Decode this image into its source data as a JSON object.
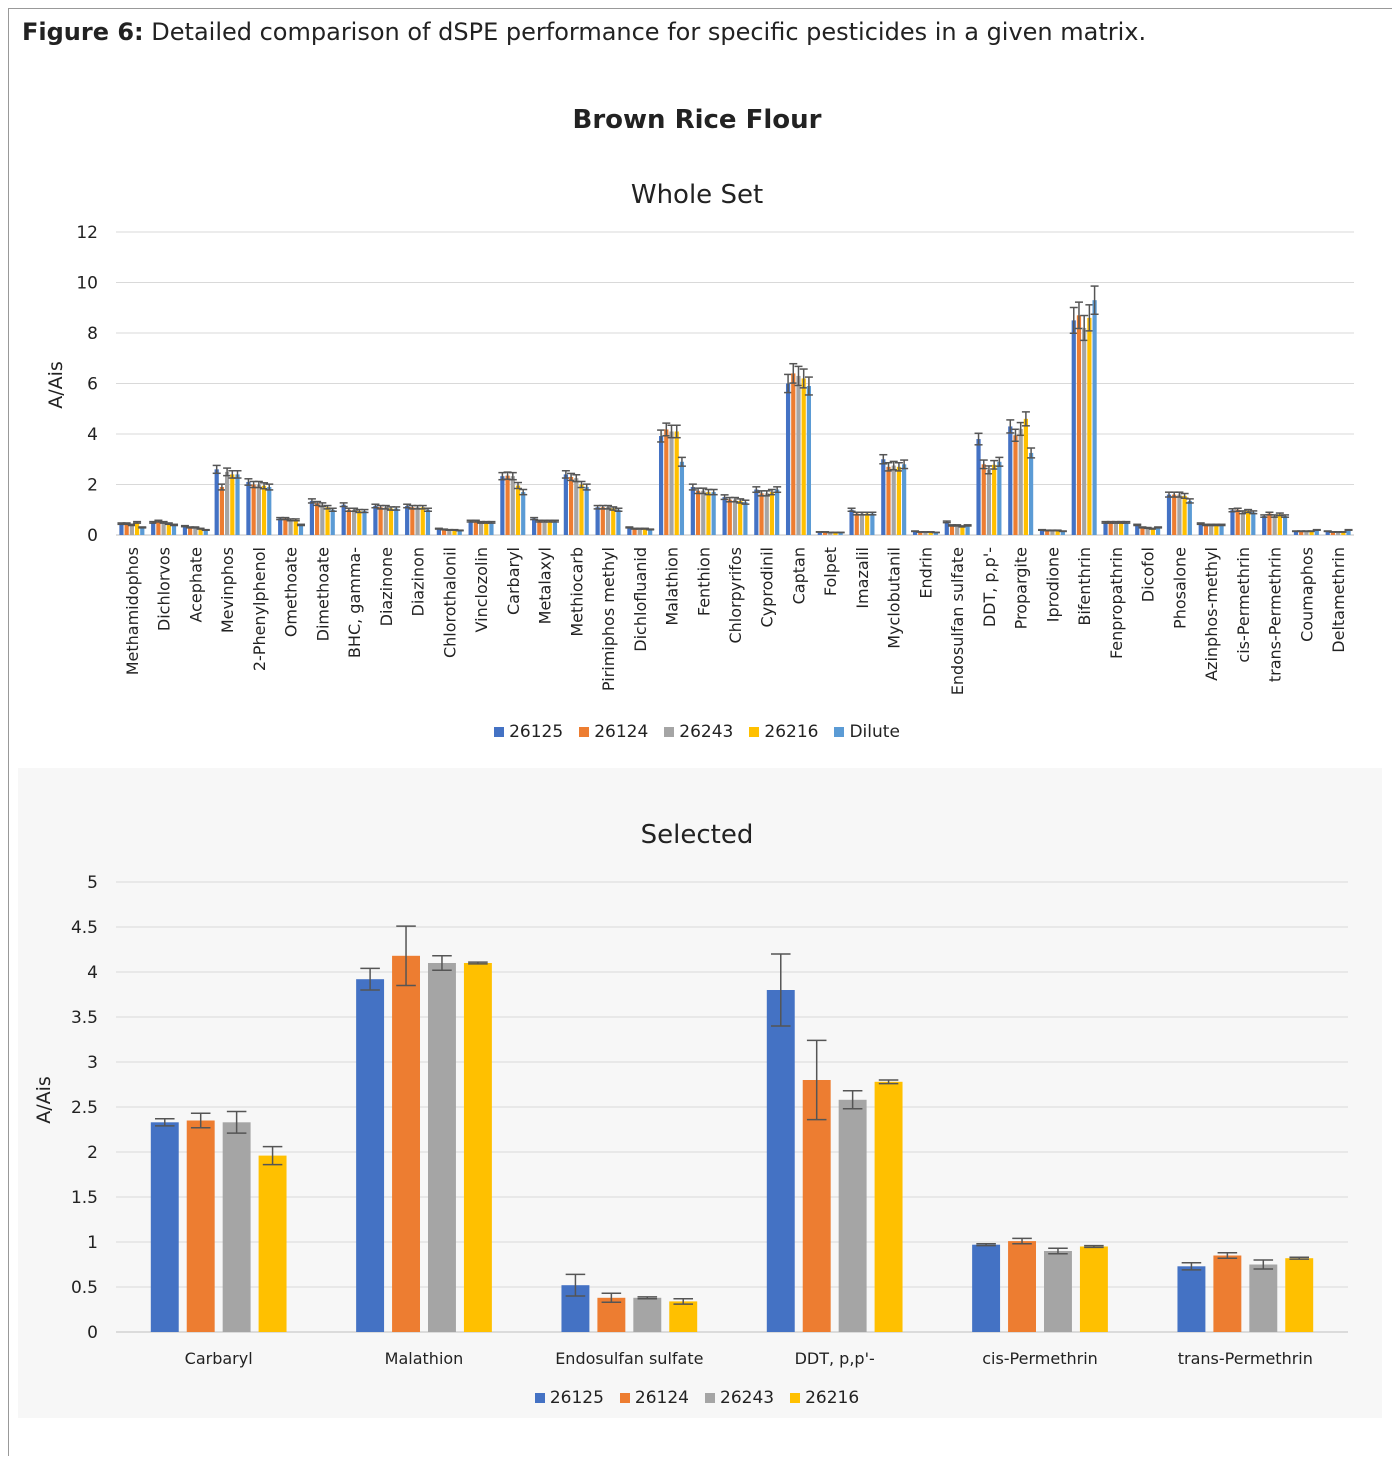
{
  "caption": {
    "label": "Figure 6:",
    "text": " Detailed comparison of dSPE performance for specific pesticides in a given matrix."
  },
  "main_title": "Brown Rice Flour",
  "chart_data": [
    {
      "type": "bar",
      "title": "Whole Set",
      "xlabel": "",
      "ylabel": "A/Ais",
      "ylim": [
        0,
        12
      ],
      "yticks": [
        "0",
        "2",
        "4",
        "6",
        "8",
        "10",
        "12"
      ],
      "grid": true,
      "legend_placement": "bottom",
      "error_bars": true,
      "categories": [
        "Methamidophos",
        "Dichlorvos",
        "Acephate",
        "Mevinphos",
        "2-Phenylphenol",
        "Omethoate",
        "Dimethoate",
        "BHC, gamma-",
        "Diazinone",
        "Diazinon",
        "Chlorothalonil",
        "Vinclozolin",
        "Carbaryl",
        "Metalaxyl",
        "Methiocarb",
        "Pirimiphos methyl",
        "Dichlofluanid",
        "Malathion",
        "Fenthion",
        "Chlorpyrifos",
        "Cyprodinil",
        "Captan",
        "Folpet",
        "Imazalil",
        "Myclobutanil",
        "Endrin",
        "Endosulfan sulfate",
        "DDT, p,p'-",
        "Propargite",
        "Iprodione",
        "Bifenthrin",
        "Fenpropathrin",
        "Dicofol",
        "Phosalone",
        "Azinphos-methyl",
        "cis-Permethrin",
        "trans-Permethrin",
        "Coumaphos",
        "Deltamethrin"
      ],
      "series": [
        {
          "name": "26125",
          "color": "#4472c4",
          "values": [
            0.45,
            0.5,
            0.35,
            2.6,
            2.1,
            0.65,
            1.35,
            1.2,
            1.15,
            1.15,
            0.25,
            0.55,
            2.33,
            0.65,
            2.4,
            1.1,
            0.3,
            3.92,
            1.9,
            1.5,
            1.8,
            6.0,
            0.12,
            1.0,
            3.0,
            0.15,
            0.52,
            3.8,
            4.3,
            0.2,
            8.5,
            0.5,
            0.4,
            1.6,
            0.45,
            0.98,
            0.75,
            0.15,
            0.15
          ]
        },
        {
          "name": "26124",
          "color": "#ed7d31",
          "values": [
            0.45,
            0.55,
            0.3,
            1.9,
            2.0,
            0.65,
            1.25,
            1.0,
            1.1,
            1.1,
            0.22,
            0.55,
            2.35,
            0.55,
            2.3,
            1.1,
            0.25,
            4.18,
            1.75,
            1.4,
            1.65,
            6.4,
            0.12,
            0.85,
            2.7,
            0.12,
            0.38,
            2.8,
            3.95,
            0.18,
            8.7,
            0.5,
            0.3,
            1.6,
            0.4,
            1.0,
            0.85,
            0.15,
            0.12
          ]
        },
        {
          "name": "26243",
          "color": "#a5a5a5",
          "values": [
            0.4,
            0.5,
            0.3,
            2.5,
            2.0,
            0.6,
            1.2,
            1.0,
            1.1,
            1.1,
            0.2,
            0.5,
            2.33,
            0.55,
            2.25,
            1.1,
            0.25,
            4.1,
            1.75,
            1.4,
            1.65,
            6.3,
            0.1,
            0.85,
            2.75,
            0.12,
            0.38,
            2.58,
            4.2,
            0.18,
            8.2,
            0.5,
            0.28,
            1.6,
            0.4,
            0.9,
            0.75,
            0.15,
            0.12
          ]
        },
        {
          "name": "26216",
          "color": "#ffc000",
          "values": [
            0.5,
            0.45,
            0.25,
            2.4,
            1.95,
            0.6,
            1.1,
            0.95,
            1.05,
            1.1,
            0.2,
            0.5,
            1.96,
            0.55,
            2.0,
            1.05,
            0.25,
            4.1,
            1.7,
            1.35,
            1.7,
            6.2,
            0.1,
            0.85,
            2.7,
            0.12,
            0.34,
            2.78,
            4.6,
            0.18,
            8.6,
            0.5,
            0.25,
            1.55,
            0.4,
            0.95,
            0.82,
            0.15,
            0.12
          ]
        },
        {
          "name": "Dilute",
          "color": "#5b9bd5",
          "values": [
            0.3,
            0.4,
            0.2,
            2.4,
            1.9,
            0.4,
            1.0,
            0.95,
            1.05,
            1.0,
            0.18,
            0.5,
            1.7,
            0.55,
            1.9,
            1.0,
            0.22,
            2.9,
            1.7,
            1.3,
            1.8,
            5.9,
            0.1,
            0.85,
            2.8,
            0.1,
            0.38,
            2.9,
            3.25,
            0.15,
            9.3,
            0.5,
            0.3,
            1.35,
            0.4,
            0.9,
            0.75,
            0.2,
            0.2
          ]
        }
      ]
    },
    {
      "type": "bar",
      "title": "Selected",
      "xlabel": "",
      "ylabel": "A/Ais",
      "ylim": [
        0,
        5
      ],
      "yticks": [
        "0",
        "0.5",
        "1",
        "1.5",
        "2",
        "2.5",
        "3",
        "3.5",
        "4",
        "4.5",
        "5"
      ],
      "grid": true,
      "legend_placement": "bottom",
      "error_bars": true,
      "categories": [
        "Carbaryl",
        "Malathion",
        "Endosulfan sulfate",
        "DDT, p,p'-",
        "cis-Permethrin",
        "trans-Permethrin"
      ],
      "series": [
        {
          "name": "26125",
          "color": "#4472c4",
          "values": [
            2.33,
            3.92,
            0.52,
            3.8,
            0.97,
            0.73
          ],
          "errors": [
            0.04,
            0.12,
            0.12,
            0.4,
            0.01,
            0.04
          ]
        },
        {
          "name": "26124",
          "color": "#ed7d31",
          "values": [
            2.35,
            4.18,
            0.38,
            2.8,
            1.01,
            0.85
          ],
          "errors": [
            0.08,
            0.33,
            0.05,
            0.44,
            0.03,
            0.03
          ]
        },
        {
          "name": "26243",
          "color": "#a5a5a5",
          "values": [
            2.33,
            4.1,
            0.38,
            2.58,
            0.9,
            0.75
          ],
          "errors": [
            0.12,
            0.08,
            0.01,
            0.1,
            0.03,
            0.05
          ]
        },
        {
          "name": "26216",
          "color": "#ffc000",
          "values": [
            1.96,
            4.1,
            0.34,
            2.78,
            0.95,
            0.82
          ],
          "errors": [
            0.1,
            0.01,
            0.03,
            0.02,
            0.01,
            0.01
          ]
        }
      ]
    }
  ]
}
